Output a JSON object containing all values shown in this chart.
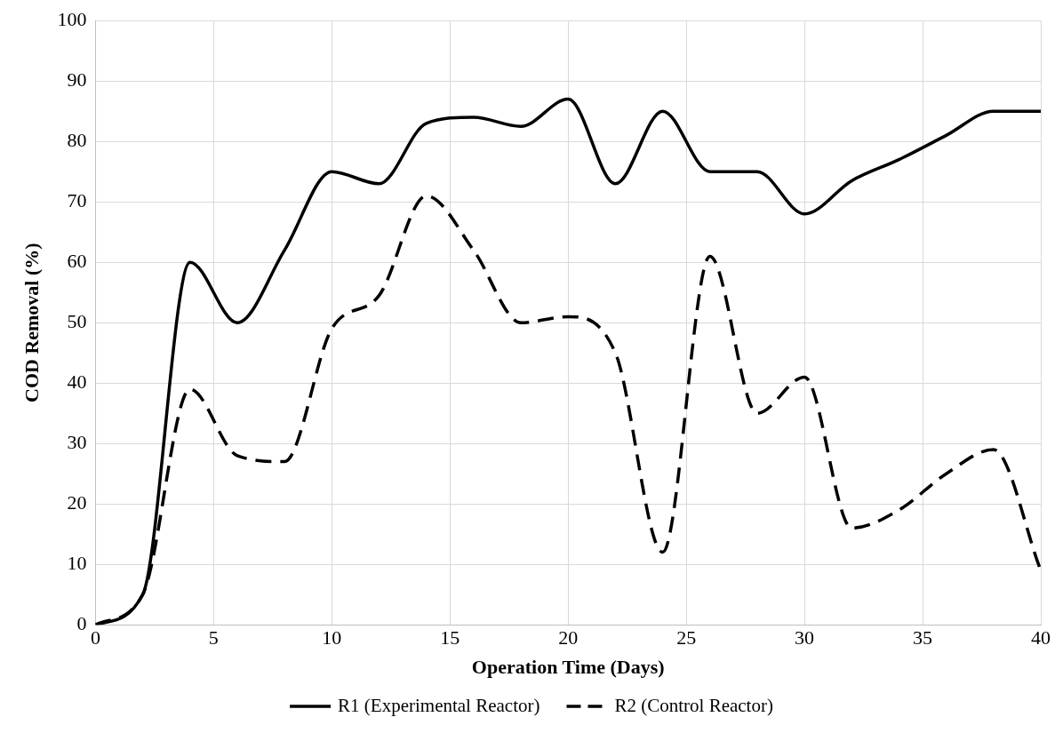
{
  "chart_data": {
    "type": "line",
    "xlabel": "Operation Time (Days)",
    "ylabel": "COD Removal (%)",
    "x": [
      0,
      2,
      4,
      6,
      8,
      10,
      12,
      14,
      16,
      18,
      20,
      22,
      24,
      26,
      28,
      30,
      32,
      34,
      36,
      38,
      40
    ],
    "series": [
      {
        "name": "R1 (Experimental Reactor)",
        "color": "#000000",
        "line_style": "solid",
        "values": [
          0,
          5,
          60,
          50,
          62,
          75,
          73,
          83,
          84,
          82.5,
          87,
          73,
          85,
          75,
          75,
          68,
          73.5,
          77,
          81,
          85,
          85
        ]
      },
      {
        "name": "R2 (Control Reactor)",
        "color": "#000000",
        "line_style": "dashed",
        "values": [
          0,
          5,
          39,
          28,
          27,
          49,
          54.5,
          71,
          62,
          50,
          51,
          45,
          12,
          61,
          35,
          41,
          16,
          19,
          25,
          29,
          9
        ]
      }
    ],
    "xlim": [
      0,
      40
    ],
    "xticks": [
      0,
      5,
      10,
      15,
      20,
      25,
      30,
      35,
      40
    ],
    "ylim": [
      0,
      100
    ],
    "yticks": [
      0,
      10,
      20,
      30,
      40,
      50,
      60,
      70,
      80,
      90,
      100
    ],
    "grid": true,
    "legend": "bottom",
    "marker": "none"
  }
}
